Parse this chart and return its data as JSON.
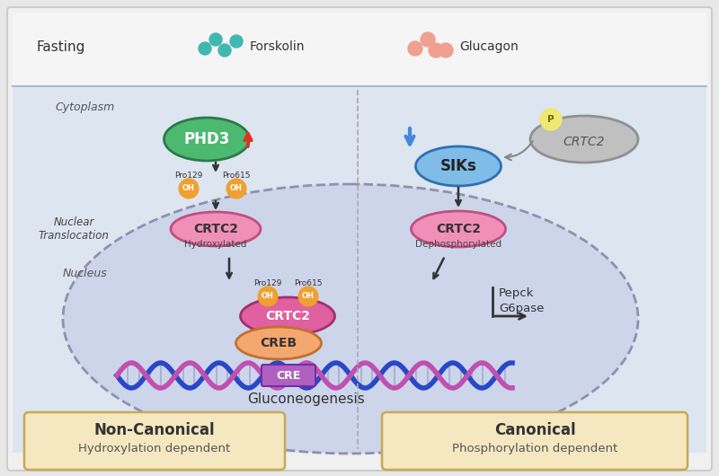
{
  "bg_color": "#e8e8e8",
  "outer_box_color": "#cccccc",
  "cell_bg": "#dde5f0",
  "top_bg": "#f5f5f5",
  "nucleus_bg": "#cdd5eb",
  "nucleus_border": "#9090b0",
  "fasting_label": "Fasting",
  "forskolin_label": "Forskolin",
  "glucagon_label": "Glucagon",
  "cytoplasm_label": "Cytoplasm",
  "nucleus_label": "Nucleus",
  "nuclear_translocation_label": "Nuclear\nTranslocation",
  "phd3_color": "#4db870",
  "phd3_edge": "#2a7a48",
  "phd3_text": "PHD3",
  "siks_color": "#80bce8",
  "siks_edge": "#3070b0",
  "siks_text": "SIKs",
  "crtc2_cyto_color": "#f090b8",
  "crtc2_cyto_edge": "#c05080",
  "crtc2_cyto_text": "CRTC2",
  "crtc2_dephos_color": "#f090b8",
  "crtc2_dephos_edge": "#c05080",
  "crtc2_dephos_text": "CRTC2",
  "crtc2_inactive_color": "#c0c0c0",
  "crtc2_inactive_edge": "#909090",
  "crtc2_inactive_text": "CRTC2",
  "crtc2_nucleus_color": "#e060a0",
  "crtc2_nucleus_edge": "#a03070",
  "crtc2_nucleus_text": "CRTC2",
  "creb_color": "#f4a870",
  "creb_edge": "#c07030",
  "creb_text": "CREB",
  "cre_color": "#b060c0",
  "cre_edge": "#7030a0",
  "cre_text": "CRE",
  "oh_color": "#f0a030",
  "oh_edge": "#b06000",
  "oh_text": "OH",
  "p_color": "#f0e870",
  "p_edge": "#c0b020",
  "p_text": "P",
  "hydroxylated_text": "Hydroxylated",
  "dephosphorylated_text": "Dephosphorylated",
  "pro129_text": "Pro129",
  "pro615_text": "Pro615",
  "gluconeogenesis_text": "Gluconeogenesis",
  "pepck_text": "Pepck\nG6pase",
  "noncanonical_title": "Non-Canonical",
  "noncanonical_sub": "Hydroxylation dependent",
  "canonical_title": "Canonical",
  "canonical_sub": "Phosphorylation dependent",
  "box_bg": "#f5e8c0",
  "box_border": "#c8a858",
  "dna_color1": "#2848c8",
  "dna_color2": "#c050b0",
  "forskolin_color": "#40b8b0",
  "glucagon_color": "#f0a090",
  "divider_color": "#aaaaaa",
  "arrow_color": "#333333",
  "red_arrow_color": "#e03020",
  "blue_arrow_color": "#4488dd"
}
